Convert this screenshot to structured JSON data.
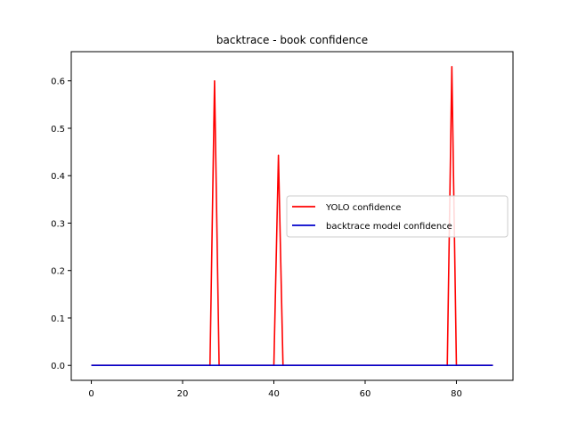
{
  "chart_data": {
    "type": "line",
    "title": "backtrace - book confidence",
    "xlabel": "",
    "ylabel": "",
    "xlim": [
      -4.4,
      92.4
    ],
    "ylim": [
      -0.0315,
      0.6615
    ],
    "xticks": [
      0,
      20,
      40,
      60,
      80
    ],
    "yticks": [
      0.0,
      0.1,
      0.2,
      0.3,
      0.4,
      0.5,
      0.6
    ],
    "xtick_labels": [
      "0",
      "20",
      "40",
      "60",
      "80"
    ],
    "ytick_labels": [
      "0.0",
      "0.1",
      "0.2",
      "0.3",
      "0.4",
      "0.5",
      "0.6"
    ],
    "grid": false,
    "legend_position": "center-right",
    "series": [
      {
        "name": "YOLO confidence",
        "color": "#ff0000",
        "x": [
          0,
          26,
          27,
          28,
          40,
          41,
          42,
          78,
          79,
          80,
          88
        ],
        "y": [
          0,
          0,
          0.6,
          0,
          0,
          0.443,
          0,
          0,
          0.63,
          0,
          0
        ]
      },
      {
        "name": "backtrace model confidence",
        "color": "#0000cc",
        "x": [
          0,
          88
        ],
        "y": [
          0,
          0
        ]
      }
    ]
  }
}
